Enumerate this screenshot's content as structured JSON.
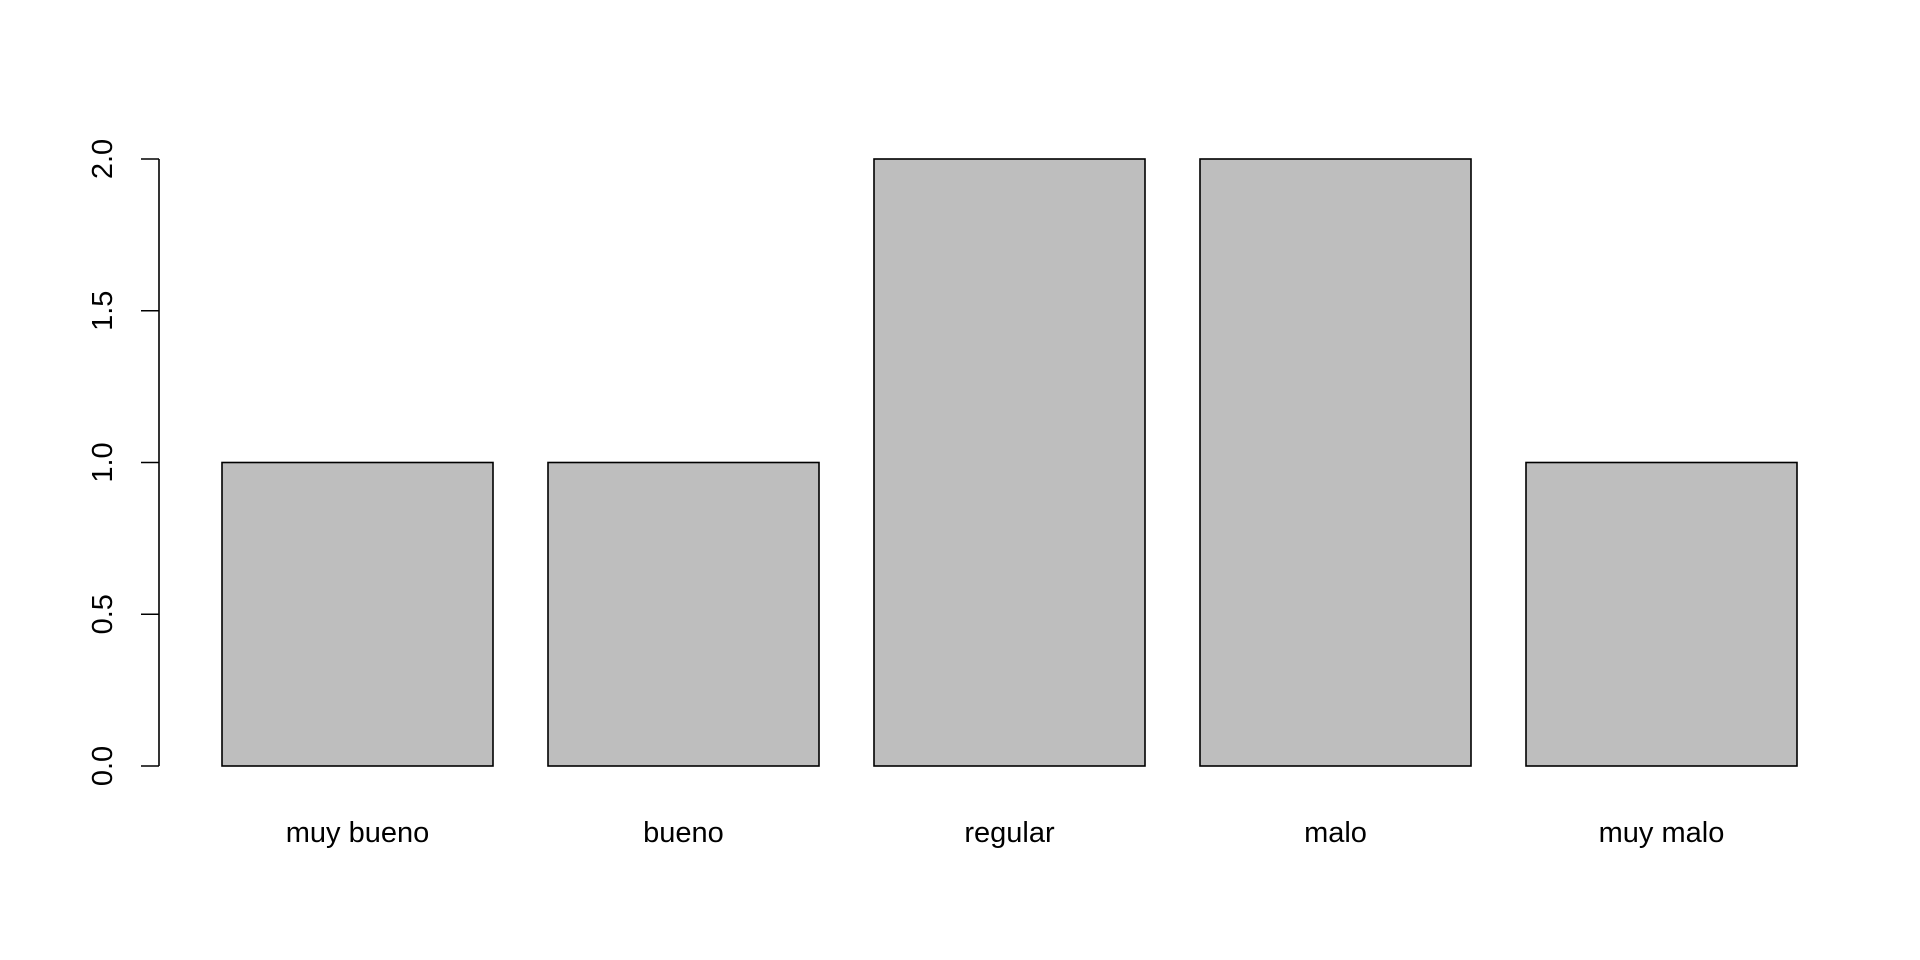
{
  "chart_data": {
    "type": "bar",
    "categories": [
      "muy bueno",
      "bueno",
      "regular",
      "malo",
      "muy malo"
    ],
    "values": [
      1,
      1,
      2,
      2,
      1
    ],
    "ylim": [
      0,
      2
    ],
    "yticks": [
      0,
      0.5,
      1,
      1.5,
      2
    ],
    "ytick_labels": [
      "0.0",
      "0.5",
      "1.0",
      "1.5",
      "2.0"
    ],
    "title": "",
    "xlabel": "",
    "ylabel": "",
    "grid": false,
    "bar_color": "#bebebe",
    "edge_color": "#000000"
  }
}
